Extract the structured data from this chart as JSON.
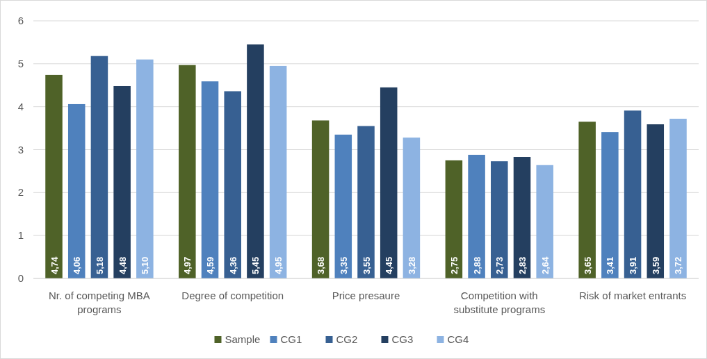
{
  "chart_data": {
    "type": "bar",
    "categories": [
      "Nr. of competing MBA programs",
      "Degree of competition",
      "Price presaure",
      "Competition with substitute programs",
      "Risk of market entrants"
    ],
    "series": [
      {
        "name": "Sample",
        "color": "#4f6228",
        "values": [
          4.74,
          4.97,
          3.68,
          2.75,
          3.65
        ],
        "value_labels": [
          "4,74",
          "4,97",
          "3,68",
          "2,75",
          "3,65"
        ]
      },
      {
        "name": "CG1",
        "color": "#4f81bd",
        "values": [
          4.06,
          4.59,
          3.35,
          2.88,
          3.41
        ],
        "value_labels": [
          "4,06",
          "4,59",
          "3,35",
          "2,88",
          "3,41"
        ]
      },
      {
        "name": "CG2",
        "color": "#376092",
        "values": [
          5.18,
          4.36,
          3.55,
          2.73,
          3.91
        ],
        "value_labels": [
          "5,18",
          "4,36",
          "3,55",
          "2,73",
          "3,91"
        ]
      },
      {
        "name": "CG3",
        "color": "#243f60",
        "values": [
          4.48,
          5.45,
          4.45,
          2.83,
          3.59
        ],
        "value_labels": [
          "4,48",
          "5,45",
          "4,45",
          "2,83",
          "3,59"
        ]
      },
      {
        "name": "CG4",
        "color": "#8db3e2",
        "values": [
          5.1,
          4.95,
          3.28,
          2.64,
          3.72
        ],
        "value_labels": [
          "5,10",
          "4,95",
          "3,28",
          "2,64",
          "3,72"
        ]
      }
    ],
    "ylim": [
      0,
      6
    ],
    "yticks": [
      0,
      1,
      2,
      3,
      4,
      5,
      6
    ],
    "grid": "y",
    "legend": "bottom"
  }
}
